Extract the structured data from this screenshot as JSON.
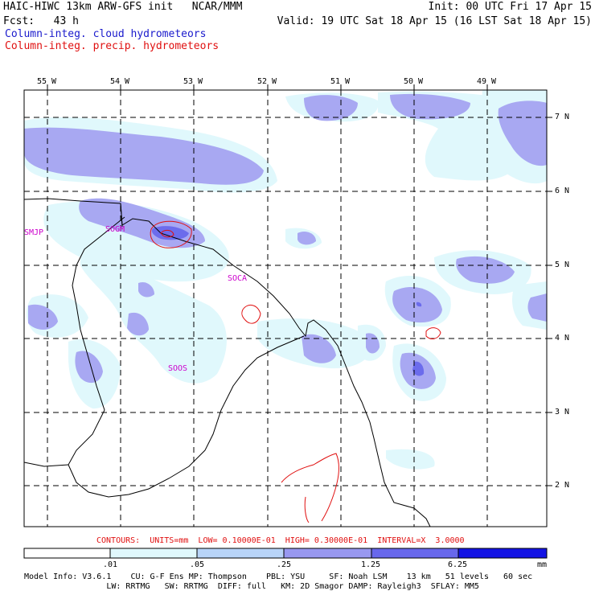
{
  "header": {
    "title_left": "HAIC-HIWC 13km ARW-GFS init   NCAR/MMM",
    "forecast": "Fcst:   43 h",
    "init": "Init: 00 UTC Fri 17 Apr 15",
    "valid": "Valid: 19 UTC Sat 18 Apr 15 (16 LST Sat 18 Apr 15)",
    "cloud_field": "Column-integ. cloud hydrometeors",
    "precip_field": "Column-integ. precip. hydrometeors",
    "cloud_color": "#1a1acc",
    "precip_color": "#e01010"
  },
  "map": {
    "lon_labels": [
      "55 W",
      "54 W",
      "53 W",
      "52 W",
      "51 W",
      "50 W",
      "49 W"
    ],
    "lat_labels": [
      "7 N",
      "6 N",
      "5 N",
      "4 N",
      "3 N",
      "2 N"
    ],
    "stations": [
      "SMJP",
      "SOGM",
      "SOCA",
      "SOOS"
    ],
    "station_color": "#cc00cc",
    "coast_color": "#000000",
    "contour_color": "#e01010"
  },
  "contours_note": "CONTOURS:  UNITS=mm  LOW= 0.10000E-01  HIGH= 0.30000E-01  INTERVAL=X  3.0000",
  "colorbar": {
    "ticks": [
      ".01",
      ".05",
      ".25",
      "1.25",
      "6.25"
    ],
    "units": "mm",
    "colors": [
      "#ffffff",
      "#e0f8fc",
      "#b8d4f8",
      "#9898f0",
      "#6868ec",
      "#1414e4"
    ]
  },
  "model_info": {
    "line1": "Model Info: V3.6.1    CU: G-F Ens MP: Thompson    PBL: YSU     SF: Noah LSM    13 km   51 levels   60 sec",
    "line2": "                 LW: RRTMG   SW: RRTMG  DIFF: full   KM: 2D Smagor DAMP: Rayleigh3  SFLAY: MM5"
  }
}
